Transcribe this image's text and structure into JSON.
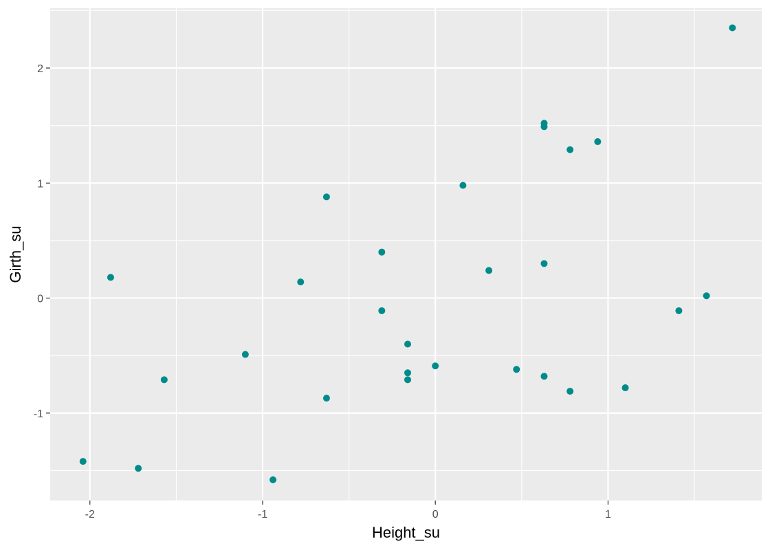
{
  "chart_data": {
    "type": "scatter",
    "xlabel": "Height_su",
    "ylabel": "Girth_su",
    "xlim": [
      -2.23,
      1.89
    ],
    "ylim": [
      -1.76,
      2.52
    ],
    "x_ticks": [
      -2,
      -1,
      0,
      1
    ],
    "x_tick_labels": [
      "-2",
      "-1",
      "0",
      "1"
    ],
    "y_ticks": [
      -1,
      0,
      1,
      2
    ],
    "y_tick_labels": [
      "-1",
      "0",
      "1",
      "2"
    ],
    "grid": true,
    "colors": {
      "panel": "#ebebeb",
      "grid": "#ffffff",
      "point": "#008b8b"
    },
    "points": [
      {
        "x": -2.04,
        "y": -1.42
      },
      {
        "x": -1.88,
        "y": 0.18
      },
      {
        "x": -1.72,
        "y": -1.48
      },
      {
        "x": -1.57,
        "y": -0.71
      },
      {
        "x": -1.1,
        "y": -0.49
      },
      {
        "x": -0.94,
        "y": -1.58
      },
      {
        "x": -0.78,
        "y": 0.14
      },
      {
        "x": -0.63,
        "y": 0.88
      },
      {
        "x": -0.63,
        "y": -0.87
      },
      {
        "x": -0.31,
        "y": 0.4
      },
      {
        "x": -0.31,
        "y": -0.11
      },
      {
        "x": -0.16,
        "y": -0.4
      },
      {
        "x": -0.16,
        "y": -0.65
      },
      {
        "x": -0.16,
        "y": -0.71
      },
      {
        "x": 0.0,
        "y": -0.59
      },
      {
        "x": 0.16,
        "y": 0.98
      },
      {
        "x": 0.31,
        "y": 0.24
      },
      {
        "x": 0.47,
        "y": -0.62
      },
      {
        "x": 0.63,
        "y": 1.52
      },
      {
        "x": 0.63,
        "y": 1.49
      },
      {
        "x": 0.63,
        "y": 0.3
      },
      {
        "x": 0.63,
        "y": -0.68
      },
      {
        "x": 0.78,
        "y": 1.29
      },
      {
        "x": 0.78,
        "y": -0.81
      },
      {
        "x": 0.94,
        "y": 1.36
      },
      {
        "x": 1.1,
        "y": -0.78
      },
      {
        "x": 1.41,
        "y": -0.11
      },
      {
        "x": 1.57,
        "y": 0.02
      },
      {
        "x": 1.72,
        "y": 2.35
      }
    ]
  }
}
